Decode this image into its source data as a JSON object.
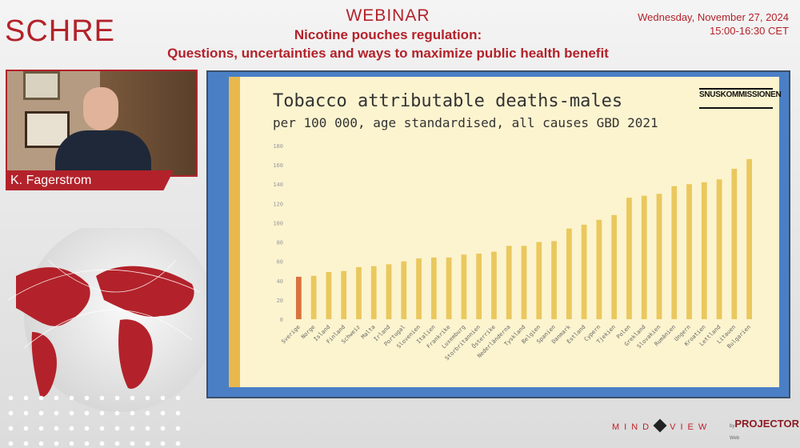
{
  "header": {
    "logo": "SCHRE",
    "webinar": "WEBINAR",
    "subtitle_line1": "Nicotine pouches regulation:",
    "subtitle_line2": "Questions, uncertainties and ways to maximize public health benefit",
    "date": "Wednesday, November 27, 2024",
    "time": "15:00-16:30 CET"
  },
  "speaker": {
    "name": "K. Fagerstrom"
  },
  "slide": {
    "brand_small": "SNUS",
    "brand_name": "KOMMISSIONEN"
  },
  "footer": {
    "mindview_left": "MIND",
    "mindview_right": "VIEW",
    "projector_prefix": "by",
    "projector": "PROJECTOR",
    "projector_sub": "Web"
  },
  "colors": {
    "accent": "#b3222a",
    "bar": "#eac85e",
    "highlight_bar": "#d9723c",
    "slide_frame": "#4a7fc6"
  },
  "chart_data": {
    "type": "bar",
    "title": "Tobacco attributable deaths-males",
    "subtitle": "per 100 000, age standardised, all causes GBD 2021",
    "ylim": [
      0,
      180
    ],
    "yticks": [
      0,
      20,
      40,
      60,
      80,
      100,
      120,
      140,
      160,
      180
    ],
    "grid": false,
    "categories": [
      "Sverige",
      "Norge",
      "Island",
      "Finland",
      "Schweiz",
      "Malta",
      "Irland",
      "Portugal",
      "Slovenien",
      "Italien",
      "Frankrike",
      "Luxemburg",
      "Storbritannien",
      "Österrike",
      "Nederländerna",
      "Tyskland",
      "Belgien",
      "Spanien",
      "Danmark",
      "Estland",
      "Cypern",
      "Tjekien",
      "Polen",
      "Grekland",
      "Slovakien",
      "Rumänien",
      "Ungern",
      "Kroatien",
      "Lettland",
      "Litauen",
      "Bulgarien"
    ],
    "values": [
      44,
      45,
      49,
      50,
      54,
      55,
      57,
      60,
      63,
      64,
      64,
      67,
      68,
      70,
      76,
      76,
      80,
      81,
      94,
      98,
      103,
      108,
      126,
      128,
      130,
      138,
      140,
      142,
      145,
      156,
      166
    ],
    "highlight": "Sverige"
  }
}
